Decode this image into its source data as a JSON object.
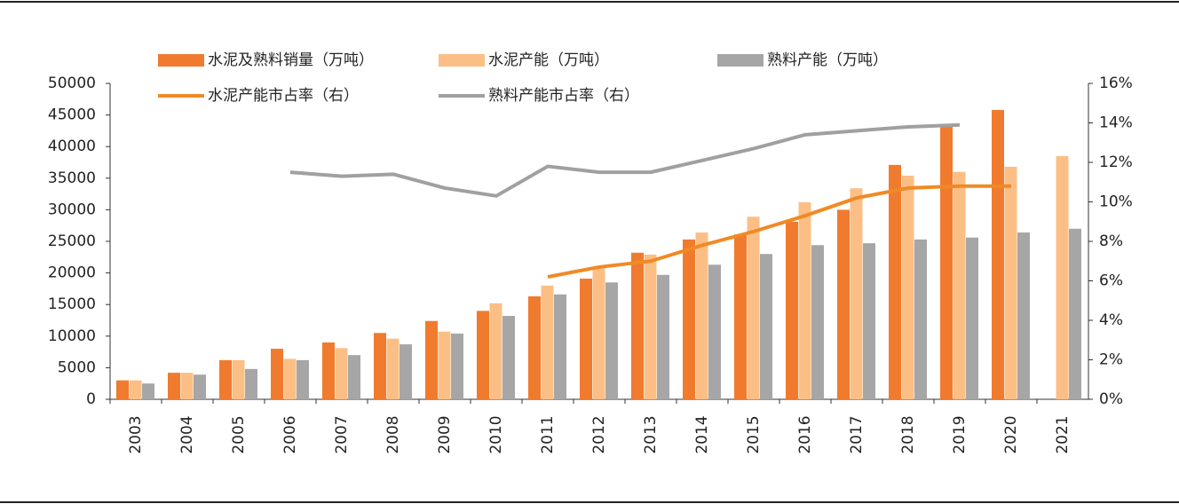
{
  "chart_data": {
    "type": "bar_line",
    "categories": [
      "2003",
      "2004",
      "2005",
      "2006",
      "2007",
      "2008",
      "2009",
      "2010",
      "2011",
      "2012",
      "2013",
      "2014",
      "2015",
      "2016",
      "2017",
      "2018",
      "2019",
      "2020",
      "2021"
    ],
    "series": [
      {
        "name": "水泥及熟料销量（万吨）",
        "type": "bar",
        "color": "#f07b2e",
        "values": [
          3000,
          4200,
          6200,
          8000,
          9000,
          10500,
          12400,
          14000,
          16300,
          19100,
          23200,
          25300,
          26100,
          28100,
          30000,
          37100,
          43500,
          45800,
          null
        ]
      },
      {
        "name": "水泥产能（万吨）",
        "type": "bar",
        "color": "#fbbf86",
        "values": [
          3000,
          4200,
          6200,
          6400,
          8100,
          9600,
          10700,
          15200,
          18000,
          20800,
          22900,
          26400,
          28900,
          31200,
          33400,
          35400,
          36000,
          36800,
          38500
        ]
      },
      {
        "name": "熟料产能（万吨）",
        "type": "bar",
        "color": "#a6a6a6",
        "values": [
          2500,
          3900,
          4800,
          6200,
          7000,
          8700,
          10400,
          13200,
          16600,
          18500,
          19700,
          21300,
          23000,
          24400,
          24700,
          25300,
          25600,
          26400,
          27000
        ]
      },
      {
        "name": "水泥产能市占率（右）",
        "type": "line",
        "axis": "y2",
        "color": "#f08a24",
        "values": [
          null,
          null,
          null,
          null,
          null,
          null,
          null,
          null,
          6.2,
          6.7,
          7.0,
          7.8,
          8.5,
          9.3,
          10.2,
          10.7,
          10.8,
          10.8,
          null
        ]
      },
      {
        "name": "熟料产能市占率（右）",
        "type": "line",
        "axis": "y2",
        "color": "#a0a0a0",
        "values": [
          null,
          null,
          null,
          11.5,
          11.3,
          11.4,
          10.7,
          10.3,
          11.8,
          11.5,
          11.5,
          12.1,
          12.7,
          13.4,
          13.6,
          13.8,
          13.9,
          null,
          null
        ]
      }
    ],
    "ylim": [
      0,
      50000
    ],
    "yticks": [
      0,
      5000,
      10000,
      15000,
      20000,
      25000,
      30000,
      35000,
      40000,
      45000,
      50000
    ],
    "y2lim": [
      0,
      16
    ],
    "y2ticks": [
      {
        "value": 0,
        "label": "0%"
      },
      {
        "value": 2,
        "label": "2%"
      },
      {
        "value": 4,
        "label": "4%"
      },
      {
        "value": 6,
        "label": "6%"
      },
      {
        "value": 8,
        "label": "8%"
      },
      {
        "value": 10,
        "label": "10%"
      },
      {
        "value": 12,
        "label": "12%"
      },
      {
        "value": 14,
        "label": "14%"
      },
      {
        "value": 16,
        "label": "16%"
      }
    ]
  }
}
